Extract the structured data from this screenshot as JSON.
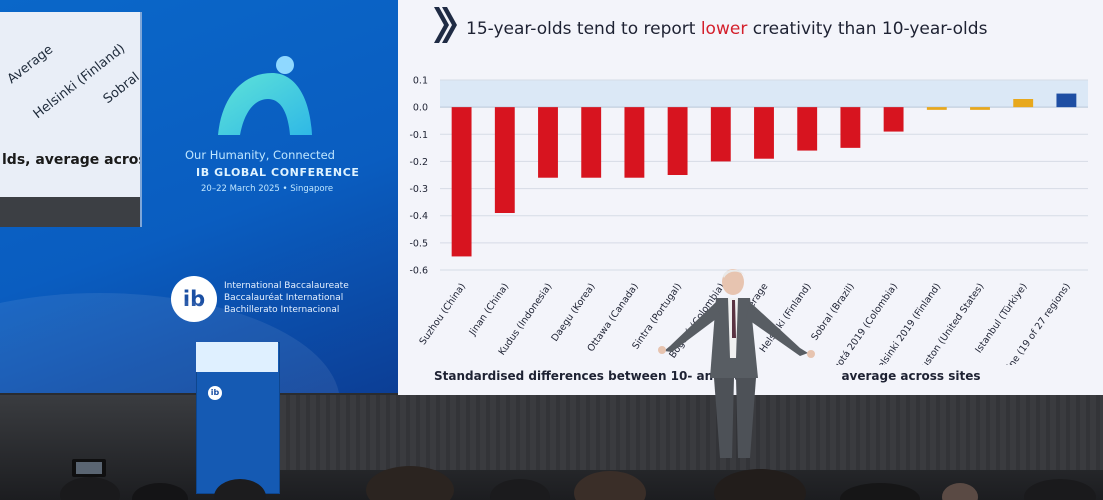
{
  "left_screen": {
    "inset_labels": [
      "Average",
      "Helsinki (Finland)",
      "Sobral"
    ],
    "inset_caption": "lds, average acros",
    "conference": {
      "tagline": "Our Humanity, Connected",
      "name": "IB GLOBAL CONFERENCE",
      "dates": "20–22 March 2025 • Singapore"
    },
    "ib": {
      "badge": "ib",
      "lines": [
        "International Baccalaureate",
        "Baccalauréat International",
        "Bachillerato Internacional"
      ]
    }
  },
  "slide": {
    "title_prefix": "15-year-olds tend to report ",
    "title_highlight": "lower",
    "title_suffix": " creativity than 10-year-olds",
    "subtitle": "Standardised differences between 10- and 15-y",
    "subtitle_end": "average across sites"
  },
  "chart_data": {
    "type": "bar",
    "categories": [
      "Suzhou (China)",
      "Jinan (China)",
      "Kudus (Indonesia)",
      "Daegu (Korea)",
      "Ottawa (Canada)",
      "Sintra (Portugal)",
      "Bogotá (Colombia)",
      "Average",
      "Helsinki (Finland)",
      "Sobral (Brazil)",
      "Bogotá 2019 (Colombia)",
      "Helsinki 2019 (Finland)",
      "Houston (United States)",
      "Istanbul (Türkiye)",
      "Ukraine (19 of 27 regions)"
    ],
    "values": [
      -0.55,
      -0.39,
      -0.26,
      -0.26,
      -0.26,
      -0.25,
      -0.2,
      -0.19,
      -0.16,
      -0.15,
      -0.09,
      -0.01,
      -0.01,
      0.03,
      0.05
    ],
    "colors": [
      "#d7141f",
      "#d7141f",
      "#d7141f",
      "#d7141f",
      "#d7141f",
      "#d7141f",
      "#d7141f",
      "#d7141f",
      "#d7141f",
      "#d7141f",
      "#d7141f",
      "#e8a81c",
      "#e8a81c",
      "#e8a81c",
      "#1e4ea3"
    ],
    "ylim": [
      -0.6,
      0.1
    ],
    "yticks": [
      "0.1",
      "0.0",
      "-0.1",
      "-0.2",
      "-0.3",
      "-0.4",
      "-0.5",
      "-0.6"
    ],
    "grid": true
  },
  "colors": {
    "accent_red": "#d7141f",
    "accent_orange": "#e8a81c",
    "accent_blue": "#1e4ea3",
    "screen_blue": "#0a67c9"
  }
}
